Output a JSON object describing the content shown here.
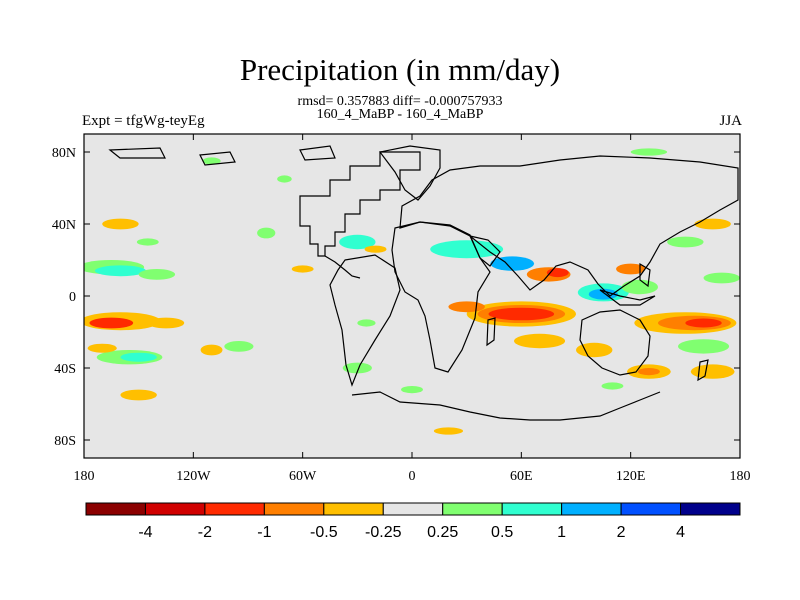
{
  "title": "Precipitation (in mm/day)",
  "stats": "rmsd= 0.357883 diff= -0.000757933",
  "subtitle": "160_4_MaBP - 160_4_MaBP",
  "experiment": "Expt = tfgWg-teyEg",
  "season": "JJA",
  "map": {
    "projection": "cylindrical-equidistant",
    "lon_range": [
      -180,
      180
    ],
    "lat_range": [
      -90,
      90
    ],
    "x_ticks": [
      {
        "lon": -180,
        "label": "180"
      },
      {
        "lon": -120,
        "label": "120W"
      },
      {
        "lon": -60,
        "label": "60W"
      },
      {
        "lon": 0,
        "label": "0"
      },
      {
        "lon": 60,
        "label": "60E"
      },
      {
        "lon": 120,
        "label": "120E"
      },
      {
        "lon": 180,
        "label": "180"
      }
    ],
    "y_ticks": [
      {
        "lat": 80,
        "label": "80N"
      },
      {
        "lat": 40,
        "label": "40N"
      },
      {
        "lat": 0,
        "label": "0"
      },
      {
        "lat": -40,
        "label": "40S"
      },
      {
        "lat": -80,
        "label": "80S"
      }
    ],
    "background_color": "#e6e6e6"
  },
  "colorbar": {
    "labels": [
      "-4",
      "-2",
      "-1",
      "-0.5",
      "-0.25",
      "0.25",
      "0.5",
      "1",
      "2",
      "4"
    ],
    "colors": [
      "#8b0000",
      "#d00000",
      "#ff2a00",
      "#ff7f00",
      "#ffbf00",
      "#e6e6e6",
      "#80ff70",
      "#30ffd0",
      "#00b0ff",
      "#0050ff",
      "#00008b"
    ]
  },
  "anomalies": [
    {
      "lon": -160,
      "lat": -14,
      "rx": 22,
      "ry": 5,
      "color": "#ffbf00"
    },
    {
      "lon": -165,
      "lat": -15,
      "rx": 12,
      "ry": 3,
      "color": "#ff2a00"
    },
    {
      "lon": -135,
      "lat": -15,
      "rx": 10,
      "ry": 3,
      "color": "#ffbf00"
    },
    {
      "lon": -165,
      "lat": 16,
      "rx": 18,
      "ry": 4,
      "color": "#80ff70"
    },
    {
      "lon": -160,
      "lat": 14,
      "rx": 14,
      "ry": 3,
      "color": "#30ffd0"
    },
    {
      "lon": -140,
      "lat": 12,
      "rx": 10,
      "ry": 3,
      "color": "#80ff70"
    },
    {
      "lon": -155,
      "lat": -34,
      "rx": 18,
      "ry": 4,
      "color": "#80ff70"
    },
    {
      "lon": -150,
      "lat": -34,
      "rx": 10,
      "ry": 2.5,
      "color": "#30ffd0"
    },
    {
      "lon": -170,
      "lat": -29,
      "rx": 8,
      "ry": 2.5,
      "color": "#ffbf00"
    },
    {
      "lon": -110,
      "lat": -30,
      "rx": 6,
      "ry": 3,
      "color": "#ffbf00"
    },
    {
      "lon": -95,
      "lat": -28,
      "rx": 8,
      "ry": 3,
      "color": "#80ff70"
    },
    {
      "lon": -160,
      "lat": 40,
      "rx": 10,
      "ry": 3,
      "color": "#ffbf00"
    },
    {
      "lon": -145,
      "lat": 30,
      "rx": 6,
      "ry": 2,
      "color": "#80ff70"
    },
    {
      "lon": -80,
      "lat": 35,
      "rx": 5,
      "ry": 3,
      "color": "#80ff70"
    },
    {
      "lon": -60,
      "lat": 15,
      "rx": 6,
      "ry": 2,
      "color": "#ffbf00"
    },
    {
      "lon": -150,
      "lat": -55,
      "rx": 10,
      "ry": 3,
      "color": "#ffbf00"
    },
    {
      "lon": -30,
      "lat": 30,
      "rx": 10,
      "ry": 4,
      "color": "#30ffd0"
    },
    {
      "lon": -20,
      "lat": 26,
      "rx": 6,
      "ry": 2,
      "color": "#ffbf00"
    },
    {
      "lon": -25,
      "lat": -15,
      "rx": 5,
      "ry": 2,
      "color": "#80ff70"
    },
    {
      "lon": -30,
      "lat": -40,
      "rx": 8,
      "ry": 3,
      "color": "#80ff70"
    },
    {
      "lon": 30,
      "lat": 26,
      "rx": 20,
      "ry": 5,
      "color": "#30ffd0"
    },
    {
      "lon": 55,
      "lat": 18,
      "rx": 12,
      "ry": 4,
      "color": "#00b0ff"
    },
    {
      "lon": 75,
      "lat": 12,
      "rx": 12,
      "ry": 4,
      "color": "#ff7f00"
    },
    {
      "lon": 80,
      "lat": 13,
      "rx": 6,
      "ry": 2.5,
      "color": "#ff2a00"
    },
    {
      "lon": 105,
      "lat": 2,
      "rx": 14,
      "ry": 5,
      "color": "#30ffd0"
    },
    {
      "lon": 105,
      "lat": 1,
      "rx": 8,
      "ry": 3,
      "color": "#00b0ff"
    },
    {
      "lon": 125,
      "lat": 5,
      "rx": 10,
      "ry": 4,
      "color": "#80ff70"
    },
    {
      "lon": 120,
      "lat": 15,
      "rx": 8,
      "ry": 3,
      "color": "#ff7f00"
    },
    {
      "lon": 60,
      "lat": -10,
      "rx": 30,
      "ry": 7,
      "color": "#ffbf00"
    },
    {
      "lon": 60,
      "lat": -10,
      "rx": 24,
      "ry": 5,
      "color": "#ff7f00"
    },
    {
      "lon": 60,
      "lat": -10,
      "rx": 18,
      "ry": 3.5,
      "color": "#ff2a00"
    },
    {
      "lon": 30,
      "lat": -6,
      "rx": 10,
      "ry": 3,
      "color": "#ff7f00"
    },
    {
      "lon": 70,
      "lat": -25,
      "rx": 14,
      "ry": 4,
      "color": "#ffbf00"
    },
    {
      "lon": 100,
      "lat": -30,
      "rx": 10,
      "ry": 4,
      "color": "#ffbf00"
    },
    {
      "lon": 150,
      "lat": -15,
      "rx": 28,
      "ry": 6,
      "color": "#ffbf00"
    },
    {
      "lon": 155,
      "lat": -15,
      "rx": 20,
      "ry": 4,
      "color": "#ff7f00"
    },
    {
      "lon": 160,
      "lat": -15,
      "rx": 10,
      "ry": 2.5,
      "color": "#ff2a00"
    },
    {
      "lon": 160,
      "lat": -28,
      "rx": 14,
      "ry": 4,
      "color": "#80ff70"
    },
    {
      "lon": 130,
      "lat": -42,
      "rx": 12,
      "ry": 4,
      "color": "#ffbf00"
    },
    {
      "lon": 130,
      "lat": -42,
      "rx": 6,
      "ry": 2,
      "color": "#ff7f00"
    },
    {
      "lon": 165,
      "lat": -42,
      "rx": 12,
      "ry": 4,
      "color": "#ffbf00"
    },
    {
      "lon": 170,
      "lat": 10,
      "rx": 10,
      "ry": 3,
      "color": "#80ff70"
    },
    {
      "lon": 150,
      "lat": 30,
      "rx": 10,
      "ry": 3,
      "color": "#80ff70"
    },
    {
      "lon": 165,
      "lat": 40,
      "rx": 10,
      "ry": 3,
      "color": "#ffbf00"
    },
    {
      "lon": 110,
      "lat": -50,
      "rx": 6,
      "ry": 2,
      "color": "#80ff70"
    },
    {
      "lon": 20,
      "lat": -75,
      "rx": 8,
      "ry": 2,
      "color": "#ffbf00"
    },
    {
      "lon": 130,
      "lat": 80,
      "rx": 10,
      "ry": 2,
      "color": "#80ff70"
    },
    {
      "lon": -110,
      "lat": 75,
      "rx": 5,
      "ry": 2,
      "color": "#80ff70"
    },
    {
      "lon": -70,
      "lat": 65,
      "rx": 4,
      "ry": 2,
      "color": "#80ff70"
    },
    {
      "lon": 0,
      "lat": -52,
      "rx": 6,
      "ry": 2,
      "color": "#80ff70"
    }
  ]
}
